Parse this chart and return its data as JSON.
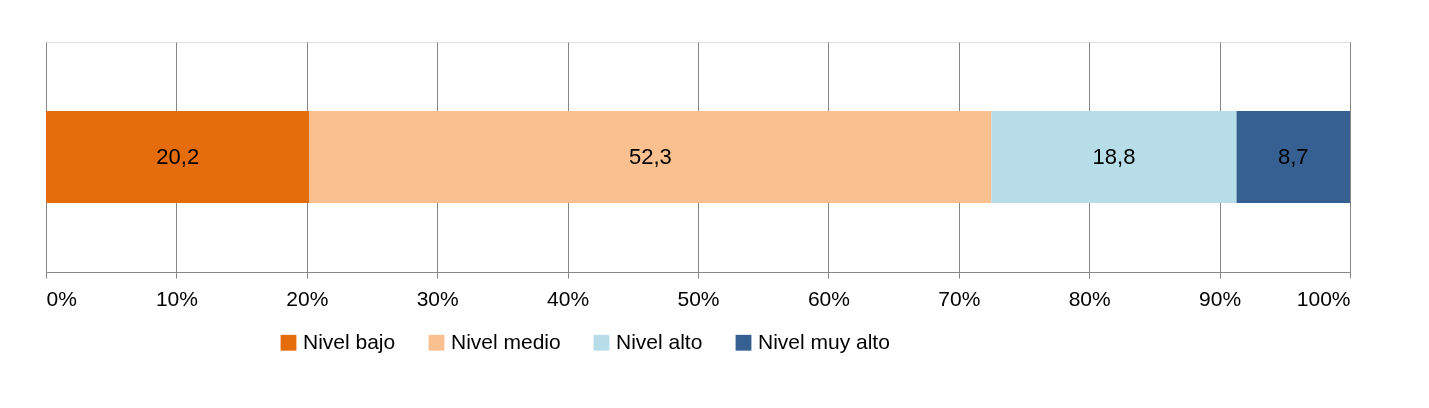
{
  "chart_data": {
    "type": "bar",
    "orientation": "horizontal",
    "stacked": true,
    "categories": [
      null
    ],
    "series": [
      {
        "name": "Nivel bajo",
        "color": "#e46c0a",
        "values": [
          20.2
        ],
        "value_labels": [
          "20,2"
        ]
      },
      {
        "name": "Nivel medio",
        "color": "#fac090",
        "values": [
          52.3
        ],
        "value_labels": [
          "52,3"
        ]
      },
      {
        "name": "Nivel alto",
        "color": "#b7dde8",
        "values": [
          18.8
        ],
        "value_labels": [
          "18,8"
        ]
      },
      {
        "name": "Nivel muy alto",
        "color": "#366092",
        "values": [
          8.7
        ],
        "value_labels": [
          "8,7"
        ]
      }
    ],
    "xlim": [
      0,
      100
    ],
    "xticks": [
      {
        "value": 0,
        "label": "0%"
      },
      {
        "value": 10,
        "label": "10%"
      },
      {
        "value": 20,
        "label": "20%"
      },
      {
        "value": 30,
        "label": "30%"
      },
      {
        "value": 40,
        "label": "40%"
      },
      {
        "value": 50,
        "label": "50%"
      },
      {
        "value": 60,
        "label": "60%"
      },
      {
        "value": 70,
        "label": "70%"
      },
      {
        "value": 80,
        "label": "80%"
      },
      {
        "value": 90,
        "label": "90%"
      },
      {
        "value": 100,
        "label": "100%"
      }
    ],
    "grid": "x",
    "legend": "bottom"
  }
}
